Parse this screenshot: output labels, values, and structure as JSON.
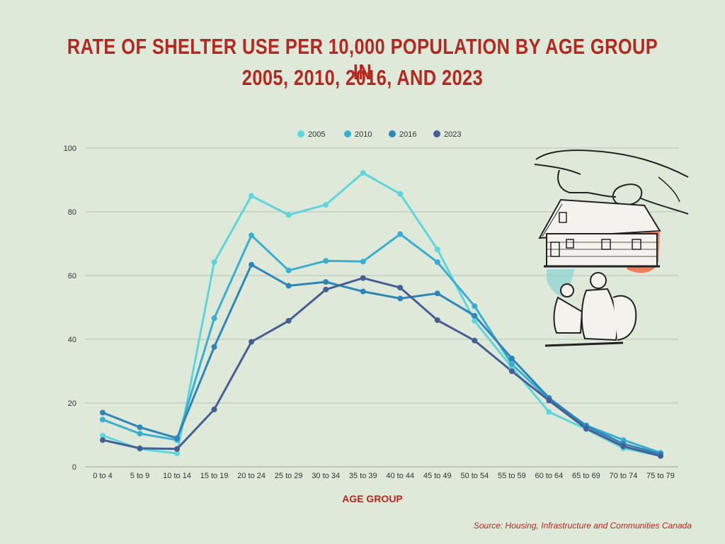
{
  "title_line1": "RATE OF SHELTER USE PER 10,000 POPULATION BY AGE GROUP IN",
  "title_line2": "2005, 2010, 2016, AND 2023",
  "source": "Source: Housing, Infrastructure and Communities Canada",
  "illustration": "hand-over-house-sheltering-people-icon",
  "chart_data": {
    "type": "line",
    "xlabel": "AGE GROUP",
    "ylabel": "",
    "ylim": [
      0,
      100
    ],
    "yticks": [
      0,
      20,
      40,
      60,
      80,
      100
    ],
    "grid": true,
    "legend_position": "top-center",
    "categories": [
      "0 to 4",
      "5 to 9",
      "10 to 14",
      "15 to 19",
      "20 to 24",
      "25 to 29",
      "30 to 34",
      "35 to 39",
      "40 to 44",
      "45 to 49",
      "50 to 54",
      "55 to 59",
      "60 to 64",
      "65 to 69",
      "70 to 74",
      "75 to 79"
    ],
    "series": [
      {
        "name": "2005",
        "color": "#5fd6dc",
        "values": [
          9.8,
          5.6,
          4.2,
          64.2,
          85.0,
          79.0,
          82.2,
          92.2,
          85.6,
          68.2,
          45.8,
          31.2,
          17.2,
          11.8,
          5.8,
          3.4
        ]
      },
      {
        "name": "2010",
        "color": "#3aaed0",
        "values": [
          14.8,
          10.4,
          8.4,
          46.6,
          72.6,
          61.6,
          64.6,
          64.4,
          73.0,
          64.2,
          50.4,
          32.2,
          21.2,
          13.0,
          8.4,
          4.4
        ]
      },
      {
        "name": "2016",
        "color": "#2e86b8",
        "values": [
          17.0,
          12.4,
          9.0,
          37.6,
          63.4,
          56.8,
          58.0,
          55.0,
          52.8,
          54.4,
          47.4,
          34.0,
          21.6,
          12.8,
          7.2,
          4.0
        ]
      },
      {
        "name": "2023",
        "color": "#455f94",
        "values": [
          8.4,
          5.8,
          5.6,
          18.0,
          39.2,
          45.8,
          55.6,
          59.2,
          56.2,
          46.0,
          39.6,
          30.0,
          20.8,
          12.0,
          6.4,
          3.4
        ]
      }
    ]
  }
}
